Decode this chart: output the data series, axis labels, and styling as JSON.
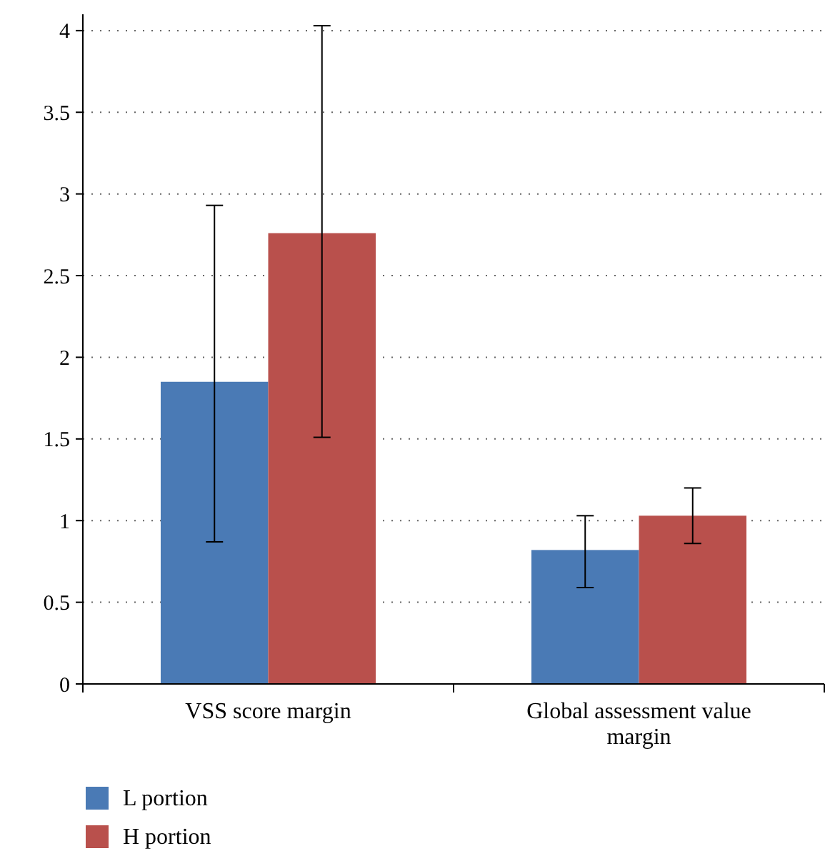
{
  "chart_data": {
    "type": "bar",
    "categories": [
      "VSS score margin",
      "Global assessment value margin"
    ],
    "series": [
      {
        "name": "L portion",
        "color": "#4a7ab5",
        "values": [
          1.85,
          0.82
        ],
        "errors": [
          [
            0.87,
            2.93
          ],
          [
            0.59,
            1.03
          ]
        ]
      },
      {
        "name": "H portion",
        "color": "#b9504c",
        "values": [
          2.76,
          1.03
        ],
        "errors": [
          [
            1.51,
            4.03
          ],
          [
            0.86,
            1.2
          ]
        ]
      }
    ],
    "ylim": [
      0,
      4.1
    ],
    "yticks": [
      0,
      0.5,
      1,
      1.5,
      2,
      2.5,
      3,
      3.5,
      4
    ],
    "grid": "y",
    "legend": "bottom left"
  }
}
